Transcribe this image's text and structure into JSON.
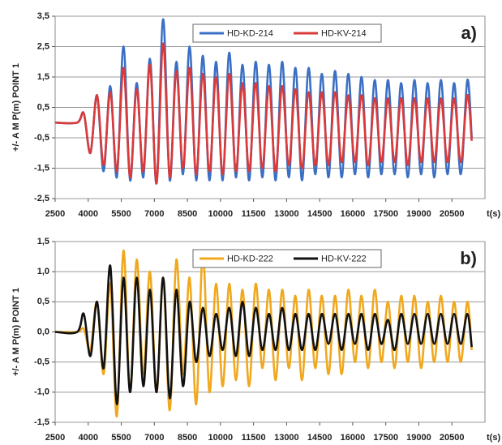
{
  "chart_data": [
    {
      "type": "line",
      "panel_label": "a)",
      "x_label": "t(s)",
      "y_label": "+/- A M P(m)  POINT 1",
      "x": [
        2500,
        3500,
        3800,
        4100,
        4400,
        4700,
        5000,
        5300,
        5600,
        5900,
        6200,
        6500,
        6800,
        7100,
        7400,
        7700,
        8000,
        8300,
        8600,
        8900,
        9200,
        9500,
        9800,
        10100,
        10400,
        10700,
        11000,
        11300,
        11600,
        11900,
        12200,
        12500,
        12800,
        13100,
        13400,
        13700,
        14000,
        14300,
        14600,
        14900,
        15200,
        15500,
        15800,
        16100,
        16400,
        16700,
        17000,
        17300,
        17600,
        17900,
        18200,
        18500,
        18800,
        19100,
        19400,
        19700,
        20000,
        20300,
        20600,
        20900,
        21200,
        21400
      ],
      "series": [
        {
          "name": "HD-KD-214",
          "color": "#3a6fc4",
          "values": [
            0,
            0,
            0.3,
            -1.0,
            0.9,
            -1.6,
            1.2,
            -1.8,
            2.5,
            -1.9,
            1.3,
            -1.8,
            2.1,
            -2.0,
            3.4,
            -1.9,
            2.0,
            -1.7,
            2.5,
            -1.9,
            2.2,
            -1.9,
            2.0,
            -1.9,
            2.3,
            -1.8,
            1.9,
            -1.9,
            2.0,
            -1.8,
            1.9,
            -1.9,
            2.0,
            -1.8,
            1.8,
            -1.9,
            1.8,
            -1.7,
            1.6,
            -1.8,
            1.7,
            -1.8,
            1.6,
            -1.7,
            1.5,
            -1.8,
            1.4,
            -1.7,
            1.4,
            -1.7,
            1.3,
            -1.8,
            1.4,
            -1.7,
            1.3,
            -1.8,
            1.4,
            -1.7,
            1.3,
            -1.7,
            1.4,
            -0.5
          ]
        },
        {
          "name": "HD-KV-214",
          "color": "#d93a3a",
          "values": [
            0,
            0,
            0.3,
            -1.0,
            0.9,
            -1.4,
            1.0,
            -1.6,
            1.8,
            -1.8,
            1.1,
            -1.6,
            1.9,
            -2.0,
            2.6,
            -1.8,
            1.7,
            -1.5,
            1.8,
            -1.7,
            1.6,
            -1.6,
            1.5,
            -1.7,
            1.6,
            -1.6,
            1.3,
            -1.6,
            1.3,
            -1.5,
            1.2,
            -1.6,
            1.2,
            -1.4,
            1.1,
            -1.5,
            1.0,
            -1.4,
            1.0,
            -1.4,
            1.0,
            -1.3,
            0.9,
            -1.3,
            0.9,
            -1.4,
            0.8,
            -1.3,
            0.8,
            -1.3,
            0.8,
            -1.4,
            0.8,
            -1.3,
            0.8,
            -1.3,
            0.8,
            -1.3,
            0.8,
            -1.3,
            0.9,
            -0.6
          ]
        }
      ],
      "xlim": [
        2500,
        22000
      ],
      "xticks": [
        2500,
        4000,
        5500,
        7000,
        8500,
        10000,
        11500,
        13000,
        14500,
        16000,
        17500,
        19000,
        20500
      ],
      "ylim": [
        -2.5,
        3.5
      ],
      "yticks": [
        {
          "value": -2.5,
          "label": "-2,5"
        },
        {
          "value": -1.5,
          "label": "-1,5"
        },
        {
          "value": -0.5,
          "label": "-0,5"
        },
        {
          "value": 0.5,
          "label": "0,5"
        },
        {
          "value": 1.5,
          "label": "1,5"
        },
        {
          "value": 2.5,
          "label": "2,5"
        },
        {
          "value": 3.5,
          "label": "3,5"
        }
      ],
      "grid": true
    },
    {
      "type": "line",
      "panel_label": "b)",
      "x_label": "t(s)",
      "y_label": "+/- A M P(m)  POINT 1",
      "x": [
        2500,
        3500,
        3800,
        4100,
        4400,
        4700,
        5000,
        5300,
        5600,
        5900,
        6200,
        6500,
        6800,
        7100,
        7400,
        7700,
        8000,
        8300,
        8600,
        8900,
        9200,
        9500,
        9800,
        10100,
        10400,
        10700,
        11000,
        11300,
        11600,
        11900,
        12200,
        12500,
        12800,
        13100,
        13400,
        13700,
        14000,
        14300,
        14600,
        14900,
        15200,
        15500,
        15800,
        16100,
        16400,
        16700,
        17000,
        17300,
        17600,
        17900,
        18200,
        18500,
        18800,
        19100,
        19400,
        19700,
        20000,
        20300,
        20600,
        20900,
        21200,
        21400
      ],
      "series": [
        {
          "name": "HD-KD-222",
          "color": "#f0a81e",
          "values": [
            0,
            0,
            0.05,
            -0.3,
            0.5,
            -0.7,
            0.8,
            -1.4,
            1.35,
            -1.0,
            1.2,
            -0.7,
            1.0,
            -1.0,
            0.9,
            -1.3,
            1.2,
            -0.7,
            0.9,
            -1.2,
            1.3,
            -1.0,
            0.8,
            -0.9,
            0.8,
            -0.8,
            0.7,
            -0.9,
            0.8,
            -0.6,
            0.7,
            -0.8,
            0.7,
            -0.6,
            0.6,
            -0.8,
            0.7,
            -0.6,
            0.6,
            -0.7,
            0.6,
            -0.7,
            0.7,
            -0.5,
            0.6,
            -0.6,
            0.7,
            -0.5,
            0.5,
            -0.6,
            0.6,
            -0.5,
            0.6,
            -0.6,
            0.5,
            -0.5,
            0.6,
            -0.5,
            0.5,
            -0.5,
            0.5,
            -0.3
          ]
        },
        {
          "name": "HD-KV-222",
          "color": "#111111",
          "values": [
            0,
            0,
            0.3,
            -0.4,
            0.5,
            -0.6,
            1.1,
            -1.2,
            0.9,
            -1.0,
            0.9,
            -0.9,
            0.7,
            -1.0,
            0.9,
            -1.1,
            0.7,
            -0.9,
            0.5,
            -0.5,
            0.4,
            -0.4,
            0.3,
            -0.3,
            0.4,
            -0.4,
            0.5,
            -0.4,
            0.4,
            -0.3,
            0.3,
            -0.3,
            0.4,
            -0.3,
            0.3,
            -0.3,
            0.3,
            -0.3,
            0.3,
            -0.2,
            0.3,
            -0.3,
            0.3,
            -0.2,
            0.3,
            -0.3,
            0.3,
            -0.2,
            0.2,
            -0.3,
            0.3,
            -0.2,
            0.3,
            -0.2,
            0.3,
            -0.2,
            0.3,
            -0.2,
            0.3,
            -0.2,
            0.3,
            -0.25
          ]
        }
      ],
      "xlim": [
        2500,
        22000
      ],
      "xticks": [
        2500,
        4000,
        5500,
        7000,
        8500,
        10000,
        11500,
        13000,
        14500,
        16000,
        17500,
        19000,
        20500
      ],
      "ylim": [
        -1.5,
        1.5
      ],
      "yticks": [
        {
          "value": -1.5,
          "label": "-1,5"
        },
        {
          "value": -1.0,
          "label": "-1,0"
        },
        {
          "value": -0.5,
          "label": "-0,5"
        },
        {
          "value": 0.0,
          "label": "0,0"
        },
        {
          "value": 0.5,
          "label": "0,5"
        },
        {
          "value": 1.0,
          "label": "1,0"
        },
        {
          "value": 1.5,
          "label": "1,5"
        }
      ],
      "grid": true
    }
  ]
}
